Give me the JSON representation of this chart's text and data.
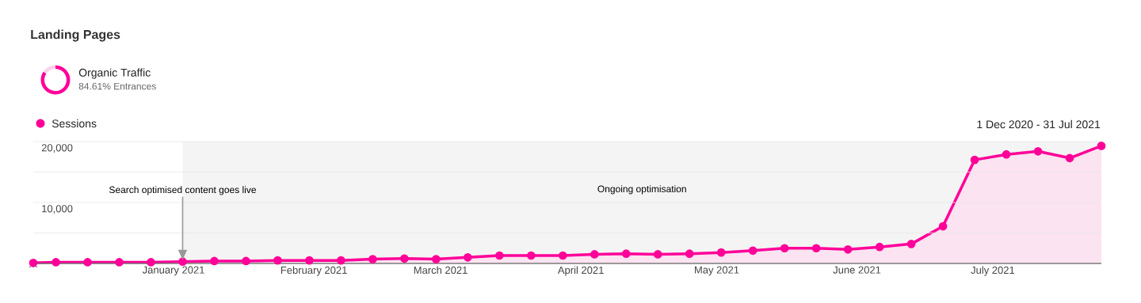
{
  "chart_data": [
    {
      "type": "donut",
      "title": "Landing Pages",
      "categories": [
        "Organic Traffic",
        null
      ],
      "values": [
        84.61,
        15.39
      ],
      "colors": [
        "#ff0099",
        "#fbd3e9"
      ],
      "value_labels": [
        "84.61% Entrances",
        null
      ]
    },
    {
      "type": "area",
      "x": [
        "2020-12-01",
        "2020-12-06",
        "2020-12-13",
        "2020-12-20",
        "2020-12-27",
        "2021-01-03",
        "2021-01-10",
        "2021-01-17",
        "2021-01-24",
        "2021-01-31",
        "2021-02-07",
        "2021-02-14",
        "2021-02-21",
        "2021-02-28",
        "2021-03-07",
        "2021-03-14",
        "2021-03-21",
        "2021-03-28",
        "2021-04-04",
        "2021-04-11",
        "2021-04-18",
        "2021-04-25",
        "2021-05-02",
        "2021-05-09",
        "2021-05-16",
        "2021-05-23",
        "2021-05-30",
        "2021-06-06",
        "2021-06-13",
        "2021-06-20",
        "2021-06-27",
        "2021-07-04",
        "2021-07-11",
        "2021-07-18",
        "2021-07-25"
      ],
      "series": [
        {
          "name": "Sessions",
          "color": "#ff0099",
          "values": [
            100,
            200,
            200,
            200,
            200,
            300,
            400,
            400,
            500,
            500,
            500,
            700,
            800,
            700,
            1000,
            1300,
            1300,
            1300,
            1500,
            1600,
            1500,
            1600,
            1800,
            2100,
            2500,
            2500,
            2300,
            2700,
            3200,
            6100,
            17000,
            17900,
            18400,
            17300,
            19300
          ]
        }
      ],
      "xlim": [
        "2020-12-01",
        "2021-07-25"
      ],
      "xticks": [
        {
          "value": "2020-12-01",
          "label": "…"
        },
        {
          "value": "2021-01-01",
          "label": "January 2021"
        },
        {
          "value": "2021-02-01",
          "label": "February 2021"
        },
        {
          "value": "2021-03-01",
          "label": "March 2021"
        },
        {
          "value": "2021-04-01",
          "label": "April 2021"
        },
        {
          "value": "2021-05-01",
          "label": "May 2021"
        },
        {
          "value": "2021-06-01",
          "label": "June 2021"
        },
        {
          "value": "2021-07-01",
          "label": "July 2021"
        }
      ],
      "ylim": [
        0,
        20000
      ],
      "yticks": [
        {
          "value": 0,
          "label": null
        },
        {
          "value": 5000,
          "label": null
        },
        {
          "value": 10000,
          "label": "10,000"
        },
        {
          "value": 15000,
          "label": null
        },
        {
          "value": 20000,
          "label": "20,000"
        }
      ],
      "grid": "y",
      "legend": "top left",
      "marker": "circle",
      "bands": [
        {
          "axis": "x",
          "from": "2021-01-03",
          "to": "2021-07-25",
          "label": "Ongoing optimisation",
          "color": "#f4f4f4"
        }
      ],
      "annotations": [
        {
          "text": "Search optimised content goes live",
          "x": "2021-01-03"
        },
        "1 Dec 2020 - 31 Jul 2021"
      ]
    }
  ]
}
